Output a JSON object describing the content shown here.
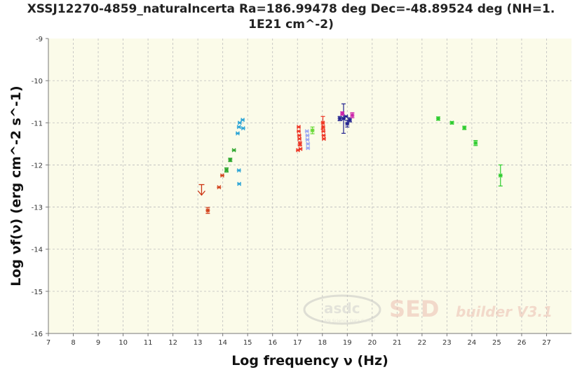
{
  "title_line1": "XSSJ12270-4859_naturalncerta Ra=186.99478 deg Dec=-48.89524 deg (NH=1.",
  "title_line2": "1E21 cm^-2)",
  "watermark": {
    "org": "asdc",
    "org_sub": "ASI Science Data Center",
    "brand": "SED",
    "brand_tail": "builder V3.1"
  },
  "chart_data": {
    "type": "scatter",
    "xlabel": "Log frequency ν (Hz)",
    "ylabel": "Log νf(ν) (erg cm^-2 s^-1)",
    "xlim": [
      7,
      28
    ],
    "ylim": [
      -16,
      -9
    ],
    "xticks": [
      7,
      8,
      9,
      10,
      11,
      12,
      13,
      14,
      15,
      16,
      17,
      18,
      19,
      20,
      21,
      22,
      23,
      24,
      25,
      26,
      27
    ],
    "yticks": [
      -9,
      -10,
      -11,
      -12,
      -13,
      -14,
      -15,
      -16
    ],
    "grid": true,
    "colors": {
      "background": "#fbfbe9",
      "grid": "#bdbdbd",
      "axis": "#777777"
    },
    "upper_limits": [
      {
        "x": 13.15,
        "y": -12.6,
        "color": "#cc3311"
      }
    ],
    "series": [
      {
        "color": "#d2401a",
        "points": [
          [
            13.4,
            -13.08,
            0.07
          ],
          [
            13.85,
            -12.53,
            0
          ],
          [
            13.98,
            -12.25,
            0
          ]
        ]
      },
      {
        "color": "#2aa52a",
        "points": [
          [
            14.15,
            -12.12,
            0.05
          ],
          [
            14.3,
            -11.88,
            0.04
          ],
          [
            14.45,
            -11.65,
            0
          ]
        ]
      },
      {
        "color": "#29a3d6",
        "points": [
          [
            14.6,
            -11.25,
            0
          ],
          [
            14.65,
            -11.1,
            0
          ],
          [
            14.68,
            -11.0,
            0
          ],
          [
            14.8,
            -10.93,
            0
          ],
          [
            14.82,
            -11.13,
            0
          ],
          [
            14.65,
            -12.13,
            0
          ],
          [
            14.66,
            -12.45,
            0
          ]
        ]
      },
      {
        "color": "#ee3322",
        "points": [
          [
            17.05,
            -11.1,
            0
          ],
          [
            17.05,
            -11.2,
            0
          ],
          [
            17.07,
            -11.3,
            0
          ],
          [
            17.08,
            -11.38,
            0
          ],
          [
            17.1,
            -11.5,
            0.05
          ],
          [
            17.12,
            -11.62,
            0
          ],
          [
            17.02,
            -11.65,
            0
          ],
          [
            18.02,
            -11.0,
            0.15
          ],
          [
            18.03,
            -11.1,
            0
          ],
          [
            18.04,
            -11.2,
            0
          ],
          [
            18.05,
            -11.3,
            0
          ],
          [
            18.06,
            -11.38,
            0
          ]
        ]
      },
      {
        "color": "#9aa6f2",
        "points": [
          [
            17.38,
            -11.2,
            0
          ],
          [
            17.4,
            -11.3,
            0
          ],
          [
            17.4,
            -11.4,
            0
          ],
          [
            17.42,
            -11.5,
            0
          ],
          [
            17.42,
            -11.6,
            0
          ]
        ]
      },
      {
        "color": "#66d933",
        "points": [
          [
            17.6,
            -11.18,
            0.08
          ]
        ]
      },
      {
        "color": "#22228f",
        "points": [
          [
            18.7,
            -10.9,
            0.05
          ],
          [
            18.85,
            -10.9,
            0.35
          ],
          [
            19.0,
            -11.02,
            0.08
          ],
          [
            19.1,
            -10.93,
            0.05
          ],
          [
            18.95,
            -10.85,
            0
          ]
        ]
      },
      {
        "color": "#cc22aa",
        "points": [
          [
            18.8,
            -10.78,
            0.04
          ],
          [
            19.2,
            -10.82,
            0.06
          ]
        ]
      },
      {
        "color": "#2ecc2e",
        "points": [
          [
            22.65,
            -10.9,
            0.04
          ],
          [
            23.2,
            -11.0,
            0.03
          ],
          [
            23.7,
            -11.12,
            0.04
          ],
          [
            24.15,
            -11.48,
            0.06
          ],
          [
            25.15,
            -12.25,
            0.25
          ]
        ]
      }
    ]
  }
}
